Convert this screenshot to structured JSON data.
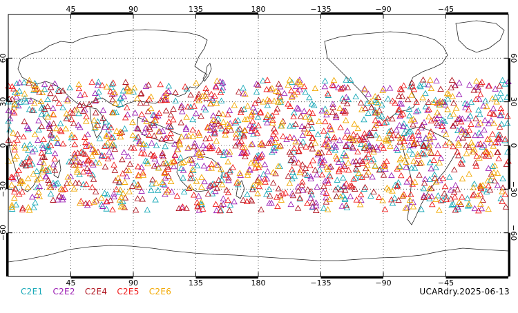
{
  "chart_data": {
    "type": "scatter",
    "projection": "equirectangular",
    "x_axis": {
      "range": [
        0,
        360
      ],
      "major_ticks": [
        45,
        90,
        135,
        180,
        225,
        270,
        315
      ],
      "tick_labels": [
        "45",
        "90",
        "135",
        "180",
        "−135",
        "−90",
        "−45"
      ]
    },
    "y_axis": {
      "range": [
        -90,
        90
      ],
      "major_ticks": [
        60,
        30,
        0,
        -30,
        -60
      ],
      "tick_labels": [
        "60",
        "30",
        "0",
        "−30",
        "−60"
      ]
    },
    "grid": true,
    "marker": "triangle-open",
    "lat_band": [
      -45,
      45
    ],
    "legend_placement": "bottom-left",
    "series": [
      {
        "name": "C2E1",
        "color": "#19a9b8"
      },
      {
        "name": "C2E2",
        "color": "#9c1fb4"
      },
      {
        "name": "C2E4",
        "color": "#b01520"
      },
      {
        "name": "C2E5",
        "color": "#f01a1a"
      },
      {
        "name": "C2E6",
        "color": "#f2a800"
      }
    ]
  },
  "footer": {
    "source_label": "UCARdry.2025-06-13"
  }
}
